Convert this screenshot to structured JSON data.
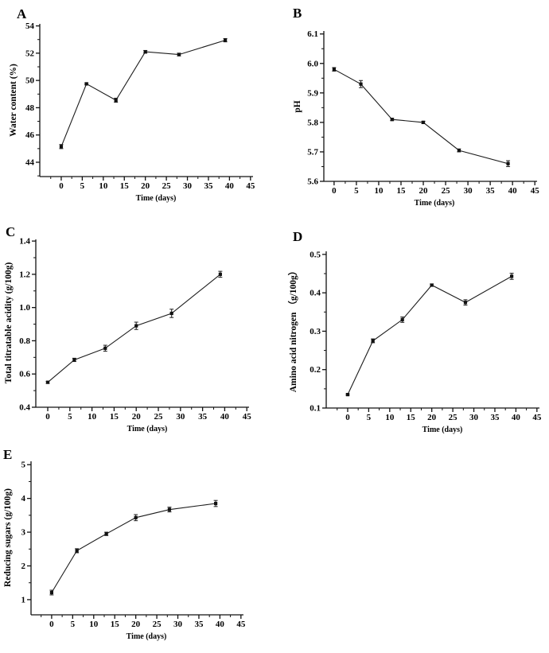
{
  "figure_title": "",
  "chart_data": [
    {
      "type": "line",
      "panel": "A",
      "xlabel": "Time (days)",
      "ylabel": "Water content (%)",
      "x": [
        0,
        6,
        13,
        20,
        28,
        39
      ],
      "y": [
        45.15,
        49.75,
        48.55,
        52.1,
        51.9,
        52.95
      ],
      "yerr": [
        0.15,
        0.06,
        0.15,
        0.1,
        0.1,
        0.12
      ],
      "xlim": [
        -5.1,
        45.6
      ],
      "ylim": [
        42.95,
        54.15
      ],
      "xticks": {
        "values": [
          0,
          5,
          10,
          15,
          20,
          25,
          30,
          35,
          40,
          45
        ],
        "labels": [
          "0",
          "5",
          "10",
          "15",
          "20",
          "25",
          "30",
          "35",
          "40",
          "45"
        ],
        "minor": [
          -2.5,
          2.5,
          7.5,
          12.5,
          17.5,
          22.5,
          27.5,
          32.5,
          37.5,
          42.5
        ]
      },
      "yticks": {
        "values": [
          44,
          46,
          48,
          50,
          52,
          54
        ],
        "labels": [
          "44",
          "46",
          "48",
          "50",
          "52",
          "54"
        ],
        "minor": [
          43,
          45,
          47,
          49,
          51,
          53
        ]
      },
      "marker": "square",
      "color": "#111111",
      "grid": false,
      "legend": "none"
    },
    {
      "type": "line",
      "panel": "B",
      "xlabel": "Time (days)",
      "ylabel": "pH",
      "x": [
        0,
        6,
        13,
        20,
        28,
        39
      ],
      "y": [
        5.98,
        5.93,
        5.81,
        5.8,
        5.705,
        5.66
      ],
      "yerr": [
        0.006,
        0.012,
        0.004,
        0.004,
        0.005,
        0.01
      ],
      "xlim": [
        -2.3,
        45.5
      ],
      "ylim": [
        5.6,
        6.11
      ],
      "xticks": {
        "values": [
          0,
          5,
          10,
          15,
          20,
          25,
          30,
          35,
          40,
          45
        ],
        "labels": [
          "0",
          "5",
          "10",
          "15",
          "20",
          "25",
          "30",
          "35",
          "40",
          "45"
        ],
        "minor": [
          2.5,
          7.5,
          12.5,
          17.5,
          22.5,
          27.5,
          32.5,
          37.5,
          42.5
        ]
      },
      "yticks": {
        "values": [
          5.6,
          5.7,
          5.8,
          5.9,
          6.0,
          6.1
        ],
        "labels": [
          "5.6",
          "5.7",
          "5.8",
          "5.9",
          "6.0",
          "6.1"
        ],
        "minor": [
          5.65,
          5.75,
          5.85,
          5.95,
          6.05
        ]
      },
      "marker": "square",
      "color": "#111111",
      "grid": false,
      "legend": "none"
    },
    {
      "type": "line",
      "panel": "C",
      "xlabel": "Time (days)",
      "ylabel": "Total titratable acidity (g/100g)",
      "x": [
        0,
        6,
        13,
        20,
        28,
        39
      ],
      "y": [
        0.55,
        0.685,
        0.755,
        0.89,
        0.965,
        1.2
      ],
      "yerr": [
        0.006,
        0.01,
        0.018,
        0.022,
        0.025,
        0.018
      ],
      "xlim": [
        -2.7,
        45.5
      ],
      "ylim": [
        0.4,
        1.41
      ],
      "xticks": {
        "values": [
          0,
          5,
          10,
          15,
          20,
          25,
          30,
          35,
          40,
          45
        ],
        "labels": [
          "0",
          "5",
          "10",
          "15",
          "20",
          "25",
          "30",
          "35",
          "40",
          "45"
        ],
        "minor": [
          2.5,
          7.5,
          12.5,
          17.5,
          22.5,
          27.5,
          32.5,
          37.5,
          42.5
        ]
      },
      "yticks": {
        "values": [
          0.4,
          0.6,
          0.8,
          1.0,
          1.2,
          1.4
        ],
        "labels": [
          "0.4",
          "0.6",
          "0.8",
          "1.0",
          "1.2",
          "1.4"
        ],
        "minor": [
          0.5,
          0.7,
          0.9,
          1.1,
          1.3
        ]
      },
      "marker": "square",
      "color": "#111111",
      "grid": false,
      "legend": "none"
    },
    {
      "type": "line",
      "panel": "D",
      "xlabel": "Time (days)",
      "ylabel": "Amino acid nitrogen （g/100g）",
      "x": [
        0,
        6,
        13,
        20,
        28,
        39
      ],
      "y": [
        0.135,
        0.275,
        0.33,
        0.42,
        0.375,
        0.443
      ],
      "yerr": [
        0.002,
        0.005,
        0.007,
        0.003,
        0.007,
        0.008
      ],
      "xlim": [
        -5.1,
        45.6
      ],
      "ylim": [
        0.1,
        0.508
      ],
      "xticks": {
        "values": [
          0,
          5,
          10,
          15,
          20,
          25,
          30,
          35,
          40,
          45
        ],
        "labels": [
          "0",
          "5",
          "10",
          "15",
          "20",
          "25",
          "30",
          "35",
          "40",
          "45"
        ],
        "minor": [
          -2.5,
          2.5,
          7.5,
          12.5,
          17.5,
          22.5,
          27.5,
          32.5,
          37.5,
          42.5
        ]
      },
      "yticks": {
        "values": [
          0.1,
          0.2,
          0.3,
          0.4,
          0.5
        ],
        "labels": [
          "0.1",
          "0.2",
          "0.3",
          "0.4",
          "0.5"
        ],
        "minor": [
          0.15,
          0.25,
          0.35,
          0.45
        ]
      },
      "marker": "square",
      "color": "#111111",
      "grid": false,
      "legend": "none"
    },
    {
      "type": "line",
      "panel": "E",
      "xlabel": "Time (days)",
      "ylabel": "Reducing sugars (g/100g)",
      "x": [
        0,
        6,
        13,
        20,
        28,
        39
      ],
      "y": [
        1.21,
        2.45,
        2.95,
        3.43,
        3.67,
        3.85
      ],
      "yerr": [
        0.07,
        0.06,
        0.05,
        0.09,
        0.07,
        0.09
      ],
      "xlim": [
        -4.9,
        45.6
      ],
      "ylim": [
        0.55,
        5.1
      ],
      "xticks": {
        "values": [
          0,
          5,
          10,
          15,
          20,
          25,
          30,
          35,
          40,
          45
        ],
        "labels": [
          "0",
          "5",
          "10",
          "15",
          "20",
          "25",
          "30",
          "35",
          "40",
          "45"
        ],
        "minor": [
          -2.5,
          2.5,
          7.5,
          12.5,
          17.5,
          22.5,
          27.5,
          32.5,
          37.5,
          42.5
        ]
      },
      "yticks": {
        "values": [
          1,
          2,
          3,
          4,
          5
        ],
        "labels": [
          "1",
          "2",
          "3",
          "4",
          "5"
        ],
        "minor": [
          0.5,
          1.5,
          2.5,
          3.5,
          4.5
        ]
      },
      "marker": "square",
      "color": "#111111",
      "grid": false,
      "legend": "none"
    }
  ]
}
